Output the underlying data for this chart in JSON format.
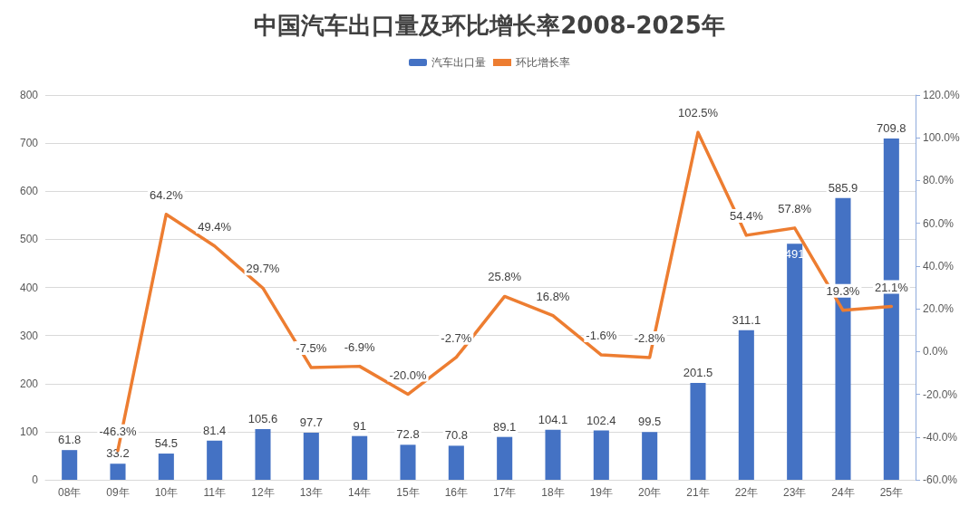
{
  "chart_data": {
    "type": "bar",
    "title": "中国汽车出口量及环比增长率2008-2025年",
    "categories": [
      "08年",
      "09年",
      "10年",
      "11年",
      "12年",
      "13年",
      "14年",
      "15年",
      "16年",
      "17年",
      "18年",
      "19年",
      "20年",
      "21年",
      "22年",
      "23年",
      "24年",
      "25年"
    ],
    "series": [
      {
        "name": "汽车出口量",
        "color": "#4472c4",
        "values": [
          61.8,
          33.2,
          54.5,
          81.4,
          105.6,
          97.7,
          91,
          72.8,
          70.8,
          89.1,
          104.1,
          102.4,
          99.5,
          201.5,
          311.1,
          491,
          585.9,
          709.8
        ],
        "value_labels": [
          "61.8",
          "33.2",
          "54.5",
          "81.4",
          "105.6",
          "97.7",
          "91",
          "72.8",
          "70.8",
          "89.1",
          "104.1",
          "102.4",
          "99.5",
          "201.5",
          "311.1",
          "491",
          "585.9",
          "709.8"
        ]
      },
      {
        "name": "环比增长率",
        "type": "line",
        "axis": "y2",
        "color": "#ed7d31",
        "values": [
          null,
          -46.3,
          64.2,
          49.4,
          29.7,
          -7.5,
          -6.9,
          -20.0,
          -2.7,
          25.8,
          16.8,
          -1.6,
          -2.8,
          102.5,
          54.4,
          57.8,
          19.3,
          21.1
        ],
        "value_labels": [
          null,
          "-46.3%",
          "64.2%",
          "49.4%",
          "29.7%",
          "-7.5%",
          "-6.9%",
          "-20.0%",
          "-2.7%",
          "25.8%",
          "16.8%",
          "-1.6%",
          "-2.8%",
          "102.5%",
          "54.4%",
          "57.8%",
          "19.3%",
          "21.1%"
        ]
      }
    ],
    "ylim": [
      0,
      800
    ],
    "yticks": [
      0,
      100,
      200,
      300,
      400,
      500,
      600,
      700,
      800
    ],
    "y2lim": [
      -60,
      120
    ],
    "y2ticks": [
      {
        "value": -60,
        "label": "-60.0%"
      },
      {
        "value": -40,
        "label": "-40.0%"
      },
      {
        "value": -20,
        "label": "-20.0%"
      },
      {
        "value": 0,
        "label": "0.0%"
      },
      {
        "value": 20,
        "label": "20.0%"
      },
      {
        "value": 40,
        "label": "40.0%"
      },
      {
        "value": 60,
        "label": "60.0%"
      },
      {
        "value": 80,
        "label": "80.0%"
      },
      {
        "value": 100,
        "label": "100.0%"
      },
      {
        "value": 120,
        "label": "120.0%"
      }
    ],
    "grid": "y",
    "legend": "top",
    "marker": "none",
    "line_style": "solid"
  }
}
